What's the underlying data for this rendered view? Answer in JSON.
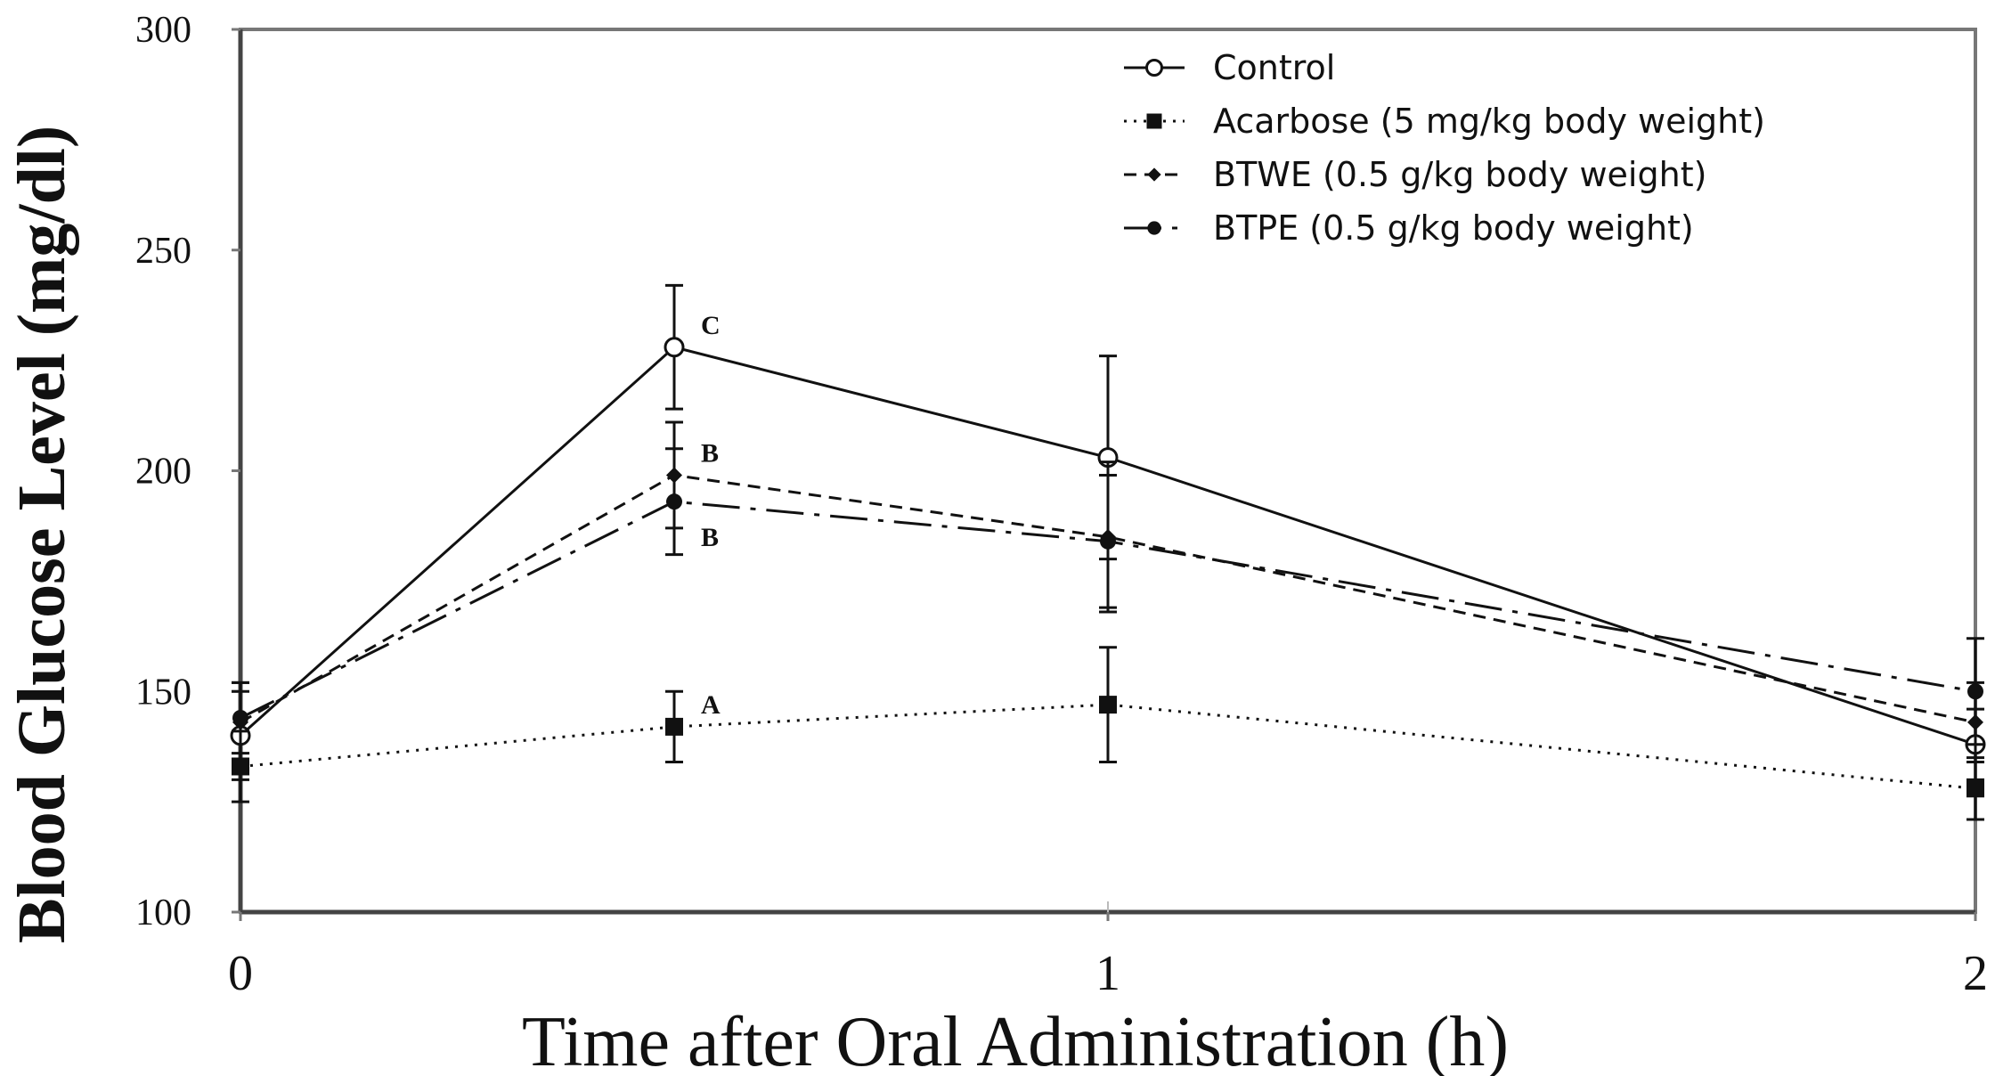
{
  "chart_data": {
    "type": "line",
    "title": "",
    "xlabel": "Time after Oral Administration (h)",
    "ylabel": "Blood Glucose Level (mg/dl)",
    "x": [
      0,
      0.5,
      1,
      2
    ],
    "xticks": [
      0,
      1,
      2
    ],
    "xlim": [
      0,
      2
    ],
    "ylim": [
      100,
      300
    ],
    "yticks": [
      100,
      150,
      200,
      250,
      300
    ],
    "grid": false,
    "legend_position": "top-right",
    "series": [
      {
        "name": "Control",
        "style": "solid",
        "marker": "open-circle",
        "values": [
          140,
          228,
          203,
          138
        ],
        "errors": [
          10,
          14,
          23,
          8
        ]
      },
      {
        "name": "Acarbose (5 mg/kg body weight)",
        "style": "dotted",
        "marker": "filled-square",
        "values": [
          133,
          142,
          147,
          128
        ],
        "errors": [
          8,
          8,
          13,
          7
        ]
      },
      {
        "name": "BTWE (0.5 g/kg body weight)",
        "style": "dashed",
        "marker": "filled-diamond",
        "values": [
          143,
          199,
          185,
          143
        ],
        "errors": [
          9,
          12,
          17,
          9
        ]
      },
      {
        "name": "BTPE (0.5 g/kg body weight)",
        "style": "dash-dot",
        "marker": "filled-circle",
        "values": [
          144,
          193,
          184,
          150
        ],
        "errors": [
          8,
          12,
          15,
          12
        ]
      }
    ],
    "annotations": [
      {
        "text": "C",
        "x": 0.5,
        "y": 233
      },
      {
        "text": "B",
        "x": 0.5,
        "y": 204
      },
      {
        "text": "B",
        "x": 0.5,
        "y": 185
      },
      {
        "text": "A",
        "x": 0.5,
        "y": 147
      }
    ],
    "colors": {
      "line": "#111111",
      "axis": "#777777",
      "background": "#ffffff"
    }
  }
}
